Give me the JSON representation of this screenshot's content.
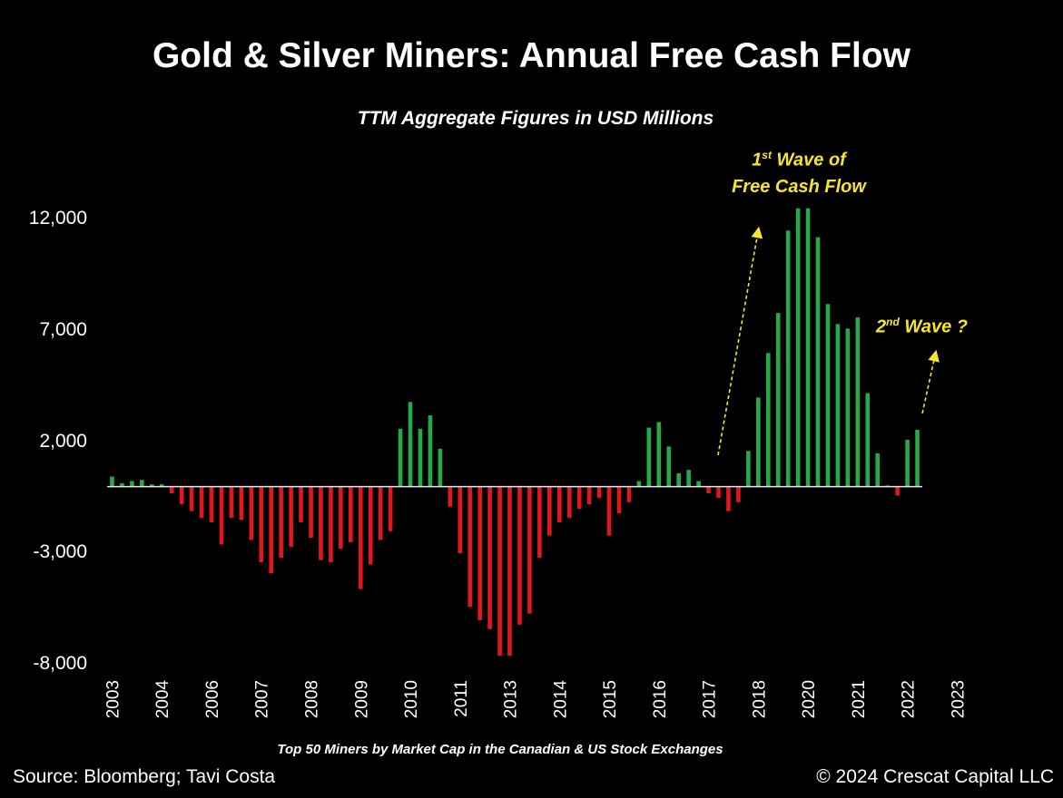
{
  "chart_data": {
    "type": "bar",
    "title": "Gold & Silver Miners: Annual Free Cash Flow",
    "subtitle": "TTM Aggregate Figures in USD Millions",
    "xlabel": "Top 50 Miners by Market Cap in the Canadian & US Stock Exchanges",
    "ylabel": "",
    "ylim": [
      -8000,
      12000
    ],
    "y_ticks": [
      {
        "value": 12000,
        "label": "12,000"
      },
      {
        "value": 7000,
        "label": "7,000"
      },
      {
        "value": 2000,
        "label": "2,000"
      },
      {
        "value": -3000,
        "label": "-3,000"
      },
      {
        "value": -8000,
        "label": "-8,000"
      }
    ],
    "x_tick_labels": [
      {
        "label": "2003",
        "index": 0
      },
      {
        "label": "2004",
        "index": 5
      },
      {
        "label": "2006",
        "index": 10
      },
      {
        "label": "2007",
        "index": 15
      },
      {
        "label": "2008",
        "index": 20
      },
      {
        "label": "2009",
        "index": 25
      },
      {
        "label": "2010",
        "index": 30
      },
      {
        "label": "2011",
        "index": 35
      },
      {
        "label": "2013",
        "index": 40
      },
      {
        "label": "2014",
        "index": 45
      },
      {
        "label": "2015",
        "index": 50
      },
      {
        "label": "2016",
        "index": 55
      },
      {
        "label": "2017",
        "index": 60
      },
      {
        "label": "2018",
        "index": 65
      },
      {
        "label": "2020",
        "index": 70
      },
      {
        "label": "2021",
        "index": 75
      },
      {
        "label": "2022",
        "index": 80
      },
      {
        "label": "2023",
        "index": 85
      }
    ],
    "values": [
      450,
      150,
      250,
      300,
      100,
      100,
      -300,
      -800,
      -1100,
      -1400,
      -1600,
      -2600,
      -1400,
      -1500,
      -2400,
      -3400,
      -3900,
      -3200,
      -2700,
      -1600,
      -2300,
      -3300,
      -3400,
      -2800,
      -2500,
      -4600,
      -3500,
      -2400,
      -2000,
      2600,
      3800,
      2600,
      3200,
      1700,
      -900,
      -3000,
      -5400,
      -6000,
      -6400,
      -7600,
      -7600,
      -6200,
      -5700,
      -3200,
      -2200,
      -1600,
      -1400,
      -1000,
      -800,
      -500,
      -2200,
      -1200,
      -700,
      250,
      2650,
      2900,
      1800,
      600,
      750,
      250,
      -300,
      -500,
      -1100,
      -700,
      1600,
      4000,
      6000,
      7800,
      11500,
      12500,
      12500,
      11200,
      8200,
      7300,
      7100,
      7600,
      4200,
      1500,
      50,
      -400,
      2100,
      2550
    ],
    "positive_color": "#27a84a",
    "negative_color": "#e2171d",
    "annotations": [
      {
        "text": "1st Wave of",
        "text2": "Free Cash Flow",
        "color": "#f7e628"
      },
      {
        "text": "2nd Wave ?",
        "color": "#f7e628"
      }
    ]
  },
  "annotation_1": {
    "sup": "st",
    "line1_rest": " Wave of",
    "line1_num": "1",
    "line2": "Free Cash Flow"
  },
  "annotation_2": {
    "num": "2",
    "sup": "nd",
    "rest": " Wave ?"
  },
  "footer": {
    "source": "Source: Bloomberg; Tavi Costa",
    "copyright": "© 2024 Crescat Capital LLC"
  }
}
